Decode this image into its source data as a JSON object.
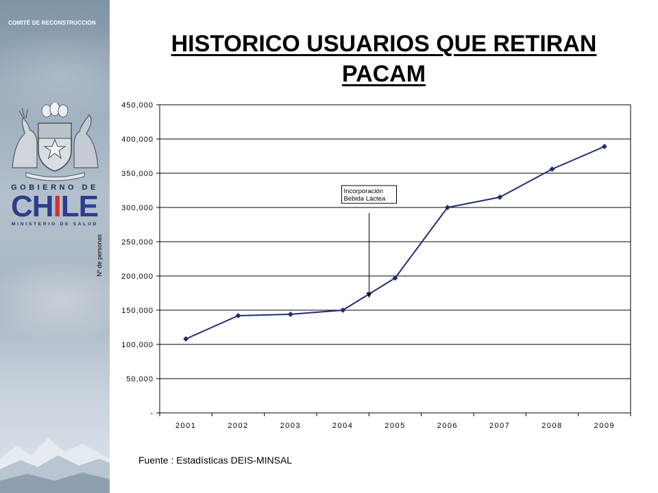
{
  "header": {
    "org_label": "COMITÉ DE RECONSTRUCCIÓN",
    "logo": {
      "top_text": "GOBIERNO DE",
      "word_blue": "CH",
      "word_red": "I",
      "word_blue2": "LE",
      "bottom_text": "MINISTERIO DE SALUD"
    }
  },
  "title": "HISTORICO USUARIOS QUE RETIRAN PACAM",
  "source": "Fuente : Estadísticas DEIS-MINSAL",
  "colors": {
    "line": "#1f2a78",
    "marker": "#1f2a78",
    "grid": "#000000",
    "sidebar_blue": "#2c3d8f",
    "sidebar_red": "#d7302b"
  },
  "icons": [
    "chile-coat-of-arms-icon",
    "mountain-icon"
  ],
  "chart_data": {
    "type": "line",
    "title": "HISTORICO USUARIOS QUE RETIRAN PACAM",
    "xlabel": "",
    "ylabel": "Nº de personas",
    "categories": [
      "2001",
      "2002",
      "2003",
      "2004",
      "2005",
      "2006",
      "2007",
      "2008",
      "2009"
    ],
    "series": [
      {
        "values": [
          108000,
          142000,
          144000,
          150000,
          197000,
          300000,
          315000,
          356000,
          389000
        ]
      }
    ],
    "ylim": [
      0,
      450000
    ],
    "yticks": [
      "-",
      "50,000",
      "100,000",
      "150,000",
      "200,000",
      "250,000",
      "300,000",
      "350,000",
      "400,000",
      "450,000"
    ],
    "ytick_values": [
      0,
      50000,
      100000,
      150000,
      200000,
      250000,
      300000,
      350000,
      400000,
      450000
    ],
    "grid": "horizontal",
    "legend": "none",
    "annotation": {
      "lines": [
        "Incorporación",
        "Bebida Láctea"
      ],
      "points_to_category": "2005",
      "arrow_tip_value": 210000
    }
  }
}
